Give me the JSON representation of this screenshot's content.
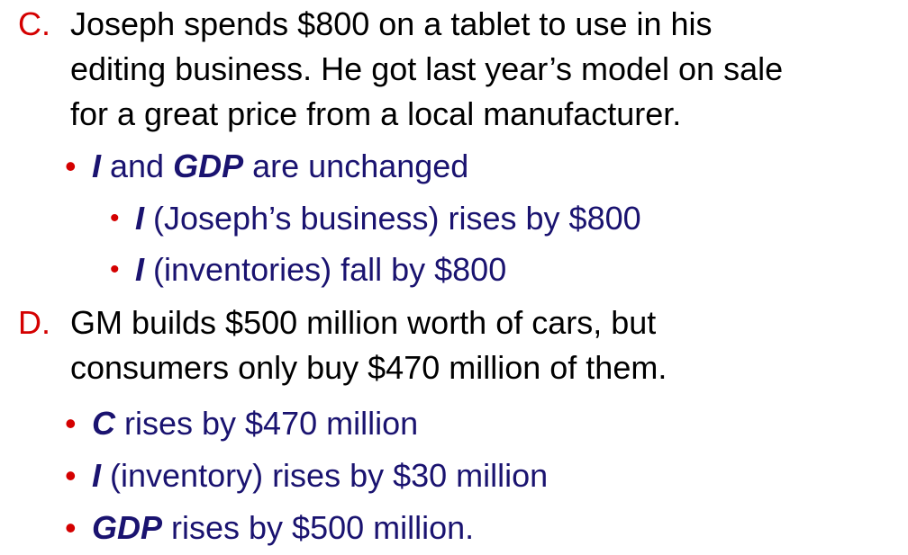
{
  "items": [
    {
      "letter": "C.",
      "lines": [
        "Joseph spends $800 on a tablet to use in his",
        "editing business.  He got last year’s model on sale",
        "for a great price from a local manufacturer."
      ],
      "bullets": [
        {
          "level": 1,
          "em": "I",
          "mid": " and ",
          "em2": "GDP",
          "rest": " are unchanged"
        },
        {
          "level": 2,
          "em": "I",
          "rest": " (Joseph’s business) rises by $800"
        },
        {
          "level": 2,
          "em": "I",
          "rest": " (inventories) fall by $800"
        }
      ]
    },
    {
      "letter": "D.",
      "lines": [
        "GM builds $500 million worth of cars, but",
        "consumers only buy $470 million of them."
      ],
      "bullets": [
        {
          "level": 1,
          "em": "C",
          "rest": " rises by $470 million"
        },
        {
          "level": 1,
          "em": "I",
          "rest": " (inventory) rises by $30 million"
        },
        {
          "level": 1,
          "em": "GDP",
          "rest": " rises by $500 million."
        }
      ]
    }
  ],
  "bullet_glyph": "•",
  "colors": {
    "letter": "#d40000",
    "bullet_dot": "#d40000",
    "bullet_text": "#1a1370",
    "body_text": "#000000"
  }
}
